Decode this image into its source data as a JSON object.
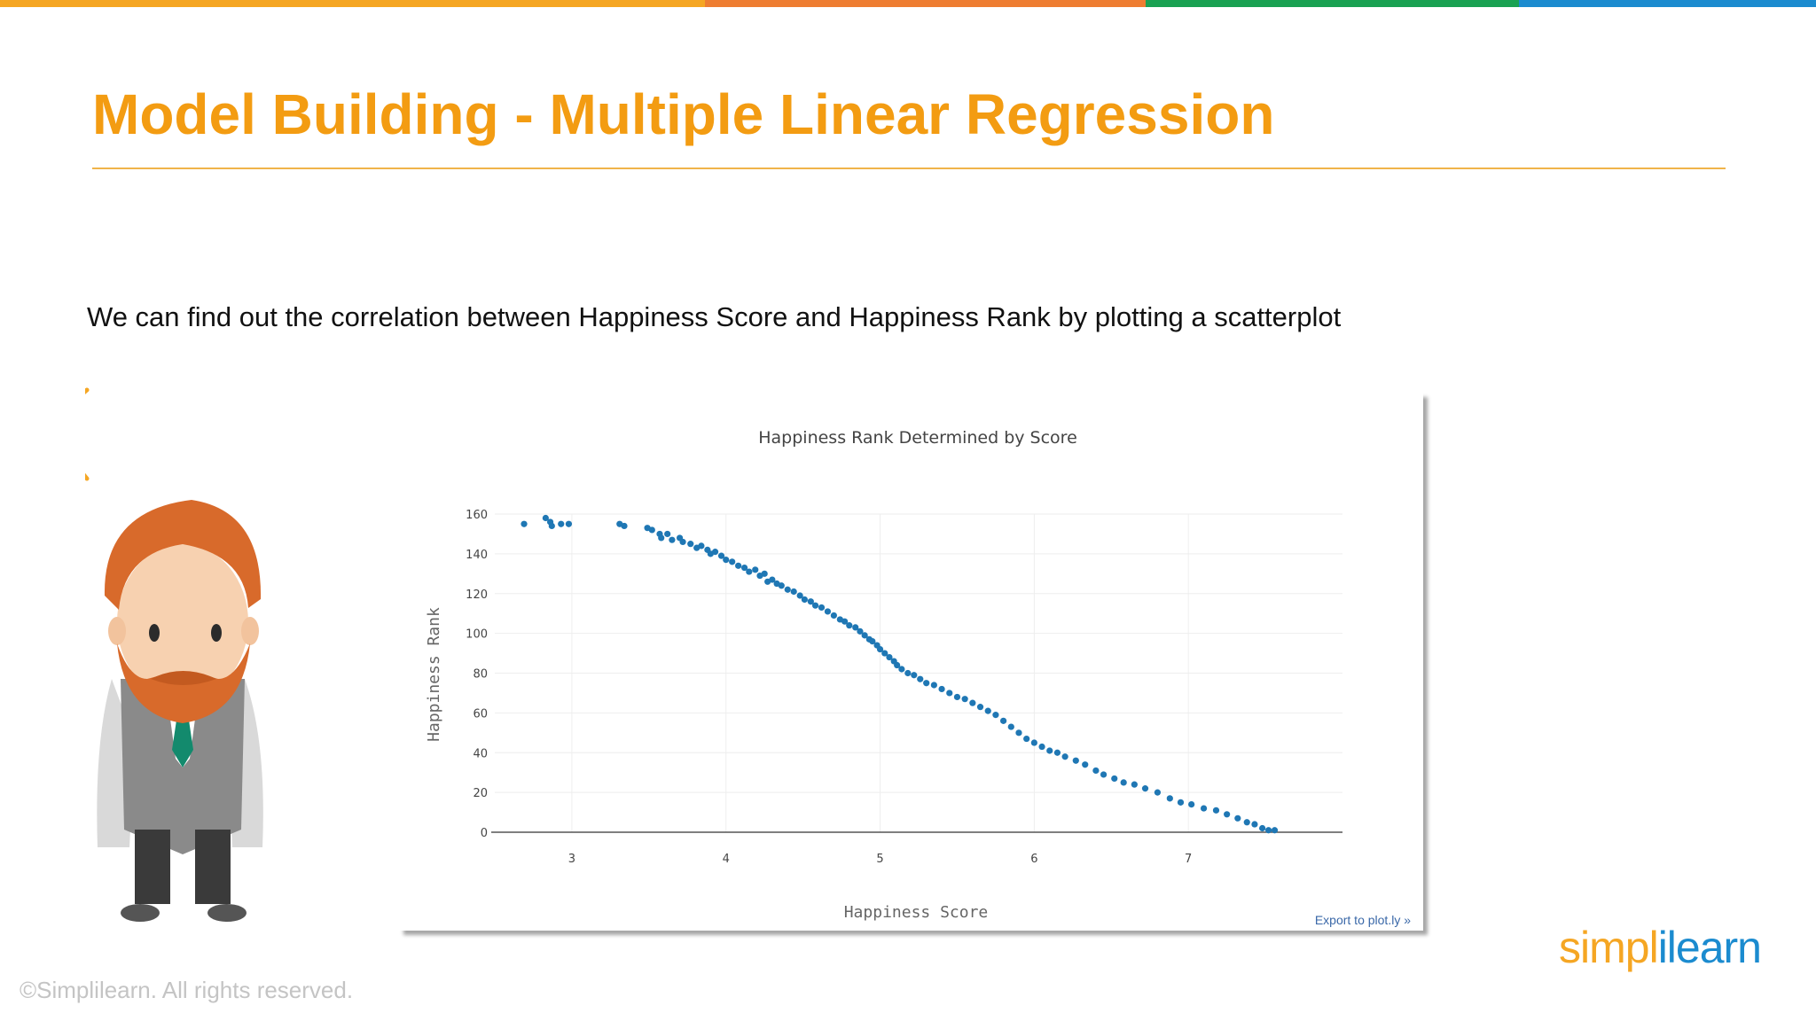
{
  "slide": {
    "title": "Model Building - Multiple Linear Regression",
    "subtitle": "We can find out the correlation between Happiness Score and Happiness Rank by plotting a scatterplot",
    "copyright": "©Simplilearn. All rights reserved.",
    "logo": {
      "part1": "simpl",
      "part2": "i",
      "part3": "learn"
    },
    "colors": {
      "title": "#f39c12",
      "rule": "#f0b44a",
      "bar": [
        "#f5a623",
        "#ee7d31",
        "#1aa152",
        "#1b8bcf"
      ],
      "logo_orange": "#f5a623",
      "logo_blue": "#1b8bcf"
    }
  },
  "export_link": "Export to plot.ly »",
  "chart_data": {
    "type": "scatter",
    "title": "Happiness Rank Determined by Score",
    "xlabel": "Happiness Score",
    "ylabel": "Happiness Rank",
    "xlim": [
      2.5,
      8.0
    ],
    "ylim": [
      0,
      160
    ],
    "xticks": [
      3,
      4,
      5,
      6,
      7
    ],
    "yticks": [
      0,
      20,
      40,
      60,
      80,
      100,
      120,
      140,
      160
    ],
    "grid": true,
    "marker_color": "#1f77b4",
    "series": [
      {
        "points": [
          [
            2.69,
            155
          ],
          [
            2.83,
            158
          ],
          [
            2.86,
            156
          ],
          [
            2.87,
            154
          ],
          [
            2.93,
            155
          ],
          [
            2.98,
            155
          ],
          [
            3.31,
            155
          ],
          [
            3.34,
            154
          ],
          [
            3.49,
            153
          ],
          [
            3.52,
            152
          ],
          [
            3.57,
            150
          ],
          [
            3.58,
            148
          ],
          [
            3.62,
            150
          ],
          [
            3.65,
            147
          ],
          [
            3.7,
            148
          ],
          [
            3.72,
            146
          ],
          [
            3.77,
            145
          ],
          [
            3.81,
            143
          ],
          [
            3.84,
            144
          ],
          [
            3.88,
            142
          ],
          [
            3.9,
            140
          ],
          [
            3.93,
            141
          ],
          [
            3.97,
            139
          ],
          [
            4.0,
            137
          ],
          [
            4.04,
            136
          ],
          [
            4.08,
            134
          ],
          [
            4.12,
            133
          ],
          [
            4.15,
            131
          ],
          [
            4.19,
            132
          ],
          [
            4.22,
            129
          ],
          [
            4.25,
            130
          ],
          [
            4.27,
            126
          ],
          [
            4.3,
            127
          ],
          [
            4.33,
            125
          ],
          [
            4.36,
            124
          ],
          [
            4.4,
            122
          ],
          [
            4.44,
            121
          ],
          [
            4.48,
            119
          ],
          [
            4.51,
            117
          ],
          [
            4.55,
            116
          ],
          [
            4.58,
            114
          ],
          [
            4.62,
            113
          ],
          [
            4.66,
            111
          ],
          [
            4.7,
            109
          ],
          [
            4.74,
            107
          ],
          [
            4.77,
            106
          ],
          [
            4.8,
            104
          ],
          [
            4.84,
            103
          ],
          [
            4.87,
            101
          ],
          [
            4.9,
            99
          ],
          [
            4.93,
            97
          ],
          [
            4.95,
            96
          ],
          [
            4.98,
            94
          ],
          [
            5.0,
            92
          ],
          [
            5.03,
            90
          ],
          [
            5.06,
            88
          ],
          [
            5.09,
            86
          ],
          [
            5.11,
            84
          ],
          [
            5.14,
            82
          ],
          [
            5.18,
            80
          ],
          [
            5.22,
            79
          ],
          [
            5.26,
            77
          ],
          [
            5.3,
            75
          ],
          [
            5.35,
            74
          ],
          [
            5.4,
            72
          ],
          [
            5.45,
            70
          ],
          [
            5.5,
            68
          ],
          [
            5.55,
            67
          ],
          [
            5.6,
            65
          ],
          [
            5.65,
            63
          ],
          [
            5.7,
            61
          ],
          [
            5.75,
            59
          ],
          [
            5.8,
            56
          ],
          [
            5.85,
            53
          ],
          [
            5.9,
            50
          ],
          [
            5.95,
            47
          ],
          [
            6.0,
            45
          ],
          [
            6.05,
            43
          ],
          [
            6.1,
            41
          ],
          [
            6.15,
            40
          ],
          [
            6.2,
            38
          ],
          [
            6.27,
            36
          ],
          [
            6.33,
            34
          ],
          [
            6.4,
            31
          ],
          [
            6.45,
            29
          ],
          [
            6.52,
            27
          ],
          [
            6.58,
            25
          ],
          [
            6.65,
            24
          ],
          [
            6.72,
            22
          ],
          [
            6.8,
            20
          ],
          [
            6.88,
            17
          ],
          [
            6.95,
            15
          ],
          [
            7.02,
            14
          ],
          [
            7.1,
            12
          ],
          [
            7.18,
            11
          ],
          [
            7.25,
            9
          ],
          [
            7.32,
            7
          ],
          [
            7.38,
            5
          ],
          [
            7.43,
            4
          ],
          [
            7.48,
            2
          ],
          [
            7.52,
            1
          ],
          [
            7.56,
            1
          ]
        ]
      }
    ]
  }
}
